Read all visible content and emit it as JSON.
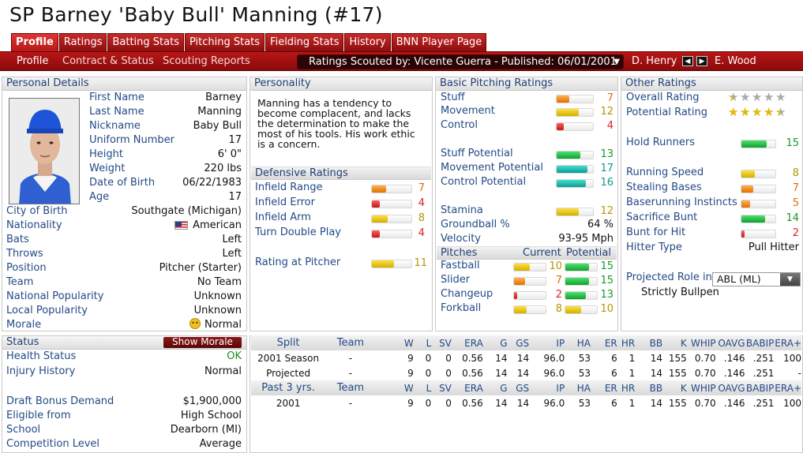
{
  "title": "SP Barney 'Baby Bull' Manning (#17)",
  "tabs": [
    "Profile",
    "Ratings",
    "Batting Stats",
    "Pitching Stats",
    "Fielding Stats",
    "History",
    "BNN Player Page"
  ],
  "subtabs": [
    "Profile",
    "Contract & Status",
    "Scouting Reports"
  ],
  "scout": "Ratings Scouted by: Vicente Guerra - Published: 06/01/2001",
  "nav_prev": "D. Henry",
  "nav_next": "E. Wood",
  "panels": {
    "personal": "Personal Details",
    "personality": "Personality",
    "defensive": "Defensive Ratings",
    "basic": "Basic Pitching Ratings",
    "other": "Other Ratings",
    "status": "Status",
    "pitches": "Pitches"
  },
  "personal": [
    {
      "label": "First Name",
      "value": "Barney"
    },
    {
      "label": "Last Name",
      "value": "Manning"
    },
    {
      "label": "Nickname",
      "value": "Baby Bull"
    },
    {
      "label": "Uniform Number",
      "value": "17"
    },
    {
      "label": "Height",
      "value": "6' 0\""
    },
    {
      "label": "Weight",
      "value": "220 lbs"
    },
    {
      "label": "Date of Birth",
      "value": "06/22/1983"
    },
    {
      "label": "Age",
      "value": "17"
    }
  ],
  "personal2": [
    {
      "label": "City of Birth",
      "value": "Southgate (Michigan)"
    },
    {
      "label": "Nationality",
      "value": "American"
    },
    {
      "label": "Bats",
      "value": "Left"
    },
    {
      "label": "Throws",
      "value": "Left"
    },
    {
      "label": "Position",
      "value": "Pitcher (Starter)"
    },
    {
      "label": "Team",
      "value": "No Team"
    },
    {
      "label": "National Popularity",
      "value": "Unknown"
    },
    {
      "label": "Local Popularity",
      "value": "Unknown"
    },
    {
      "label": "Morale",
      "value": "Normal"
    }
  ],
  "personality_text": "Manning has a tendency to become complacent, and lacks the determination to make the most of his tools. His work ethic is a concern.",
  "defensive": [
    {
      "label": "Infield Range",
      "value": 7
    },
    {
      "label": "Infield Error",
      "value": 4
    },
    {
      "label": "Infield Arm",
      "value": 8
    },
    {
      "label": "Turn Double Play",
      "value": 4
    }
  ],
  "rating_at_pitcher": {
    "label": "Rating at Pitcher",
    "value": 11
  },
  "basic": [
    {
      "label": "Stuff",
      "value": 7
    },
    {
      "label": "Movement",
      "value": 12
    },
    {
      "label": "Control",
      "value": 4
    },
    {
      "label": "Stuff Potential",
      "value": 13
    },
    {
      "label": "Movement Potential",
      "value": 17
    },
    {
      "label": "Control Potential",
      "value": 16
    },
    {
      "label": "Stamina",
      "value": 12
    }
  ],
  "groundball": {
    "label": "Groundball %",
    "value": "64 %"
  },
  "velocity": {
    "label": "Velocity",
    "value": "93-95 Mph"
  },
  "pitch_headers": [
    "Current",
    "Potential"
  ],
  "pitches": [
    {
      "name": "Fastball",
      "current": 10,
      "potential": 15
    },
    {
      "name": "Slider",
      "current": 7,
      "potential": 15
    },
    {
      "name": "Changeup",
      "current": 2,
      "potential": 13
    },
    {
      "name": "Forkball",
      "current": 8,
      "potential": 10
    }
  ],
  "other": {
    "overall_label": "Overall Rating",
    "overall_stars": 0.5,
    "potential_label": "Potential Rating",
    "potential_stars": 4.5,
    "ratings": [
      {
        "label": "Hold Runners",
        "value": 15
      },
      {
        "label": "Running Speed",
        "value": 8
      },
      {
        "label": "Stealing Bases",
        "value": 7
      },
      {
        "label": "Baserunning Instincts",
        "value": 5
      },
      {
        "label": "Sacrifice Bunt",
        "value": 14
      },
      {
        "label": "Bunt for Hit",
        "value": 2
      }
    ],
    "hitter_type_label": "Hitter Type",
    "hitter_type": "Pull Hitter",
    "projected_role_label": "Projected Role in",
    "projected_league": "ABL (ML)",
    "projected_role": "Strictly Bullpen"
  },
  "status": {
    "show_morale": "Show Morale",
    "health_label": "Health Status",
    "health": "OK",
    "injury_label": "Injury History",
    "injury": "Normal",
    "rows": [
      {
        "label": "Draft Bonus Demand",
        "value": "$1,900,000"
      },
      {
        "label": "Eligible from",
        "value": "High School"
      },
      {
        "label": "School",
        "value": "Dearborn (MI)"
      },
      {
        "label": "Competition Level",
        "value": "Average"
      }
    ]
  },
  "stats_header": [
    "Split",
    "Team",
    "W",
    "L",
    "SV",
    "ERA",
    "G",
    "GS",
    "IP",
    "HA",
    "ER",
    "HR",
    "BB",
    "K",
    "WHIP",
    "OAVG",
    "BABIP",
    "ERA+"
  ],
  "stats_rows": [
    [
      "2001 Season",
      "-",
      "9",
      "0",
      "0",
      "0.56",
      "14",
      "14",
      "96.0",
      "53",
      "6",
      "1",
      "14",
      "155",
      "0.70",
      ".146",
      ".251",
      "100"
    ],
    [
      "Projected",
      "-",
      "9",
      "0",
      "0",
      "0.56",
      "14",
      "14",
      "96.0",
      "53",
      "6",
      "1",
      "14",
      "155",
      "0.70",
      ".146",
      ".251",
      "-"
    ]
  ],
  "stats_header2": [
    "Past 3 yrs.",
    "Team",
    "W",
    "L",
    "SV",
    "ERA",
    "G",
    "GS",
    "IP",
    "HA",
    "ER",
    "HR",
    "BB",
    "K",
    "WHIP",
    "OAVG",
    "BABIP",
    "ERA+"
  ],
  "stats_rows2": [
    [
      "2001",
      "-",
      "9",
      "0",
      "0",
      "0.56",
      "14",
      "14",
      "96.0",
      "53",
      "6",
      "1",
      "14",
      "155",
      "0.70",
      ".146",
      ".251",
      "100"
    ]
  ]
}
